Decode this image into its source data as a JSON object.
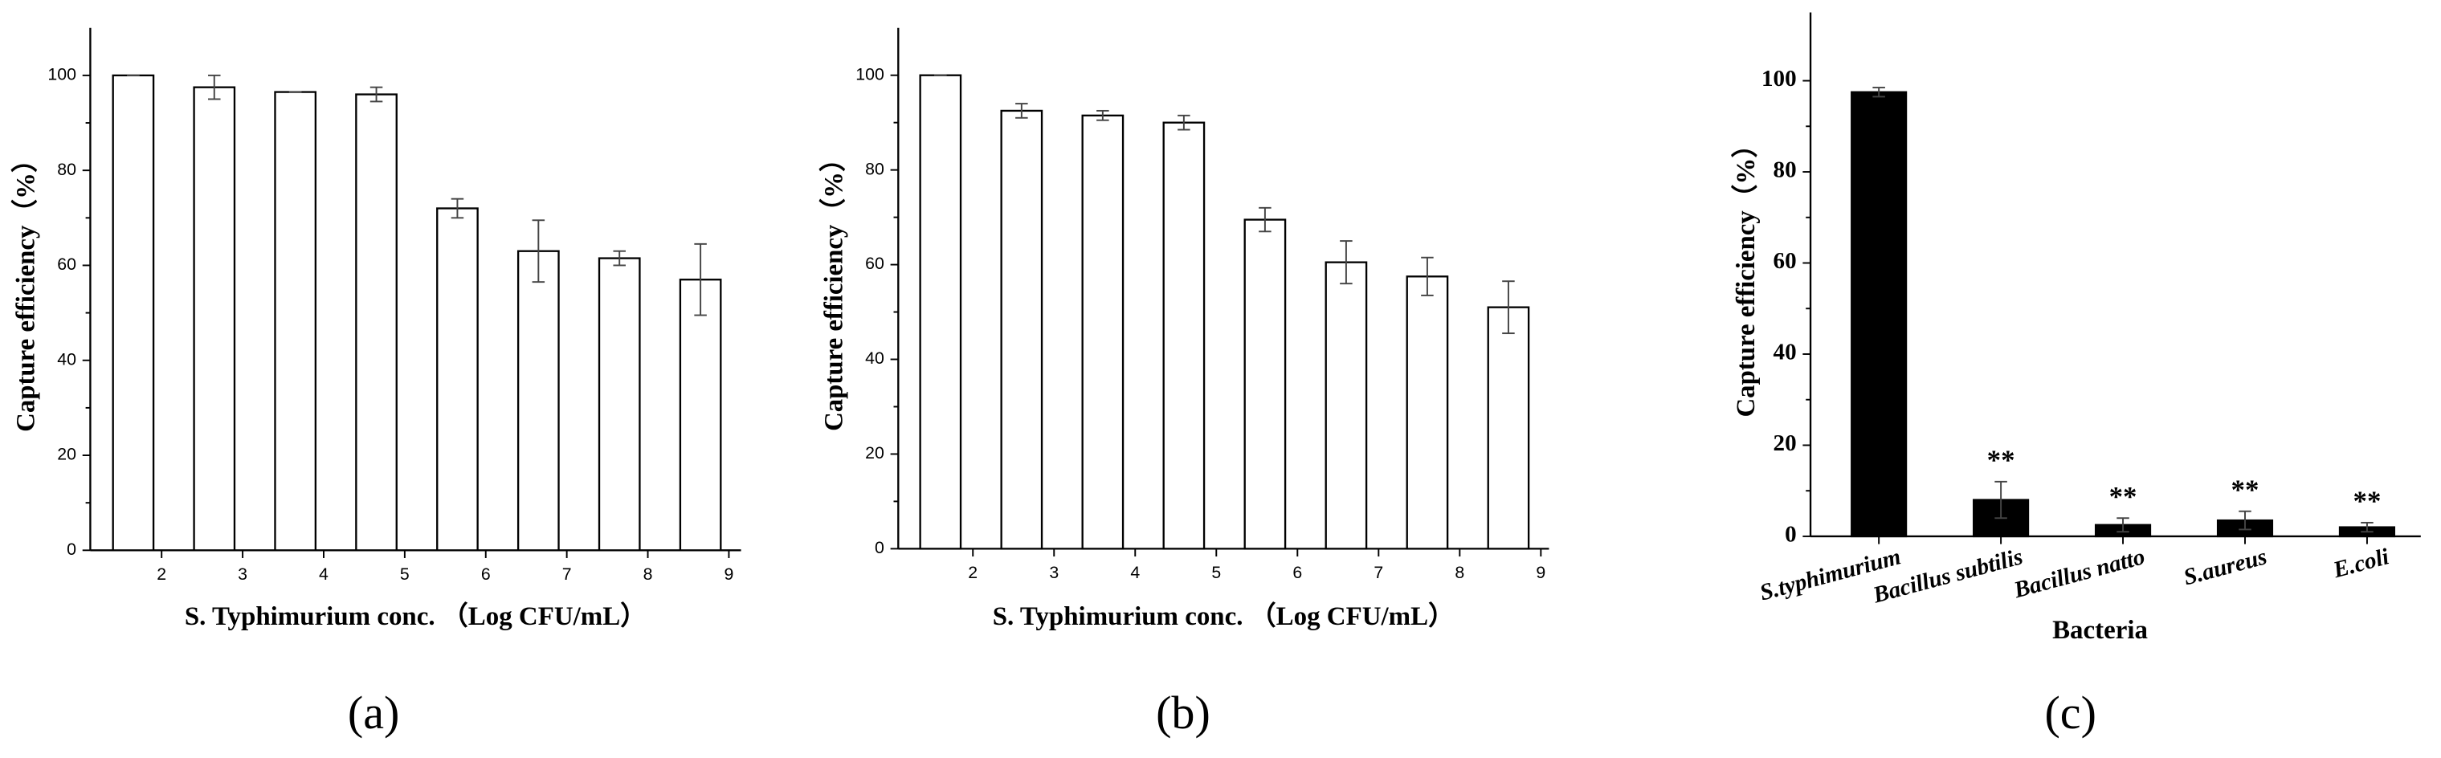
{
  "chart_data": [
    {
      "type": "bar",
      "label": "(a)",
      "xlabel": "S. Typhimurium conc. （Log CFU/mL）",
      "ylabel": "Capture efficiency（%）",
      "x": [
        1.65,
        2.65,
        3.65,
        4.65,
        5.65,
        6.65,
        7.65,
        8.65
      ],
      "values": [
        100,
        97.5,
        96.5,
        96,
        72,
        63,
        61.5,
        57
      ],
      "errors": [
        0,
        2.5,
        0,
        1.5,
        2,
        6.5,
        1.5,
        7.5
      ],
      "color": "#ffffff",
      "xlim": [
        1.12,
        9.15
      ],
      "xticks": [
        2,
        3,
        4,
        5,
        6,
        7,
        8,
        9
      ],
      "ylim": [
        0,
        110
      ],
      "yticks": [
        0,
        20,
        40,
        60,
        80,
        100
      ]
    },
    {
      "type": "bar",
      "label": "(b)",
      "xlabel": "S. Typhimurium conc. （Log CFU/mL）",
      "ylabel": "Capture efficiency（%）",
      "x": [
        1.6,
        2.6,
        3.6,
        4.6,
        5.6,
        6.6,
        7.6,
        8.6
      ],
      "values": [
        100,
        92.5,
        91.5,
        90,
        69.5,
        60.5,
        57.5,
        51
      ],
      "errors": [
        0,
        1.5,
        1,
        1.5,
        2.5,
        4.5,
        4,
        5.5
      ],
      "color": "#ffffff",
      "xlim": [
        1.08,
        9.1
      ],
      "xticks": [
        2,
        3,
        4,
        5,
        6,
        7,
        8,
        9
      ],
      "ylim": [
        0,
        110
      ],
      "yticks": [
        0,
        20,
        40,
        60,
        80,
        100
      ]
    },
    {
      "type": "category-bar",
      "label": "(c)",
      "xlabel": "Bacteria",
      "ylabel": "Capture efficiency（%）",
      "categories": [
        "S.typhimurium",
        "Bacillus subtilis",
        "Bacillus natto",
        "S.aureus",
        "E.coli"
      ],
      "values": [
        97.5,
        8,
        2.5,
        3.5,
        2
      ],
      "errors": [
        1,
        4,
        1.5,
        2,
        1
      ],
      "annotations": [
        null,
        "**",
        "**",
        "**",
        "**"
      ],
      "color": "#000000",
      "ylim": [
        0,
        115
      ],
      "yticks": [
        0,
        20,
        40,
        60,
        80,
        100
      ]
    }
  ]
}
